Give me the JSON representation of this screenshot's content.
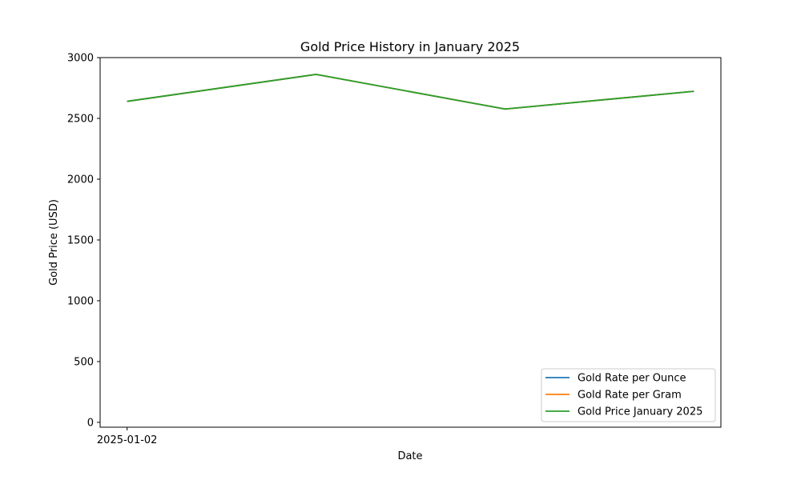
{
  "chart_data": {
    "type": "line",
    "title": "Gold Price History in January 2025",
    "xlabel": "Date",
    "ylabel": "Gold Price (USD)",
    "ylim": [
      -40,
      3000
    ],
    "yticks": [
      0,
      500,
      1000,
      1500,
      2000,
      2500,
      3000
    ],
    "xticks": [
      "2025-01-02"
    ],
    "x": [
      "2025-01-02",
      "2025-01-09",
      "2025-01-16",
      "2025-01-23"
    ],
    "xlim": [
      "2025-01-01",
      "2025-01-24"
    ],
    "series": [
      {
        "name": "Gold Rate per Ounce",
        "color": "#1f77b4",
        "values": [
          2640,
          2862,
          2577,
          2723
        ]
      },
      {
        "name": "Gold Rate per Gram",
        "color": "#ff7f0e",
        "values": [
          2640,
          2862,
          2577,
          2723
        ]
      },
      {
        "name": "Gold Price January 2025",
        "color": "#2ca02c",
        "values": [
          2640,
          2862,
          2577,
          2723
        ]
      }
    ],
    "legend": "lower-right",
    "grid": false
  }
}
